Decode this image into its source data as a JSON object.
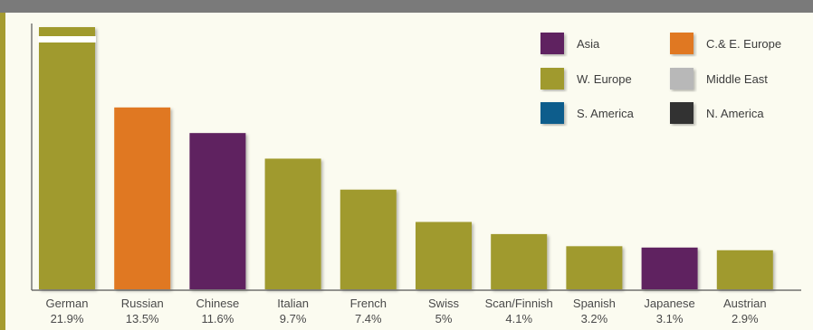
{
  "chart_data": {
    "type": "bar",
    "categories": [
      "German",
      "Russian",
      "Chinese",
      "Italian",
      "French",
      "Swiss",
      "Scan/Finnish",
      "Spanish",
      "Japanese",
      "Austrian"
    ],
    "values": [
      21.9,
      13.5,
      11.6,
      9.7,
      7.4,
      5,
      4.1,
      3.2,
      3.1,
      2.9
    ],
    "value_labels": [
      "21.9%",
      "13.5%",
      "11.6%",
      "9.7%",
      "7.4%",
      "5%",
      "4.1%",
      "3.2%",
      "3.1%",
      "2.9%"
    ],
    "regions": [
      "W. Europe",
      "C.& E. Europe",
      "Asia",
      "W. Europe",
      "W. Europe",
      "W. Europe",
      "W. Europe",
      "W. Europe",
      "Asia",
      "W. Europe"
    ],
    "axis_break_on": "German",
    "ylim": [
      0,
      16
    ],
    "grid": false,
    "legend_position": "top-right",
    "legend": [
      {
        "label": "Asia",
        "color": "#5e2160"
      },
      {
        "label": "C.& E. Europe",
        "color": "#e07820"
      },
      {
        "label": "W. Europe",
        "color": "#a09a2e"
      },
      {
        "label": "Middle East",
        "color": "#b8b8b8"
      },
      {
        "label": "S. America",
        "color": "#0e5d8c"
      },
      {
        "label": "N. America",
        "color": "#333333"
      }
    ]
  },
  "colors": {
    "Asia": "#5e2160",
    "C.& E. Europe": "#e07820",
    "W. Europe": "#a09a2e",
    "Middle East": "#b8b8b8",
    "S. America": "#0e5d8c",
    "N. America": "#333333",
    "axis": "#555555",
    "frame_top": "#7a7a7a",
    "frame_left": "#a59b30",
    "panel_bg": "#fbfbf0"
  }
}
